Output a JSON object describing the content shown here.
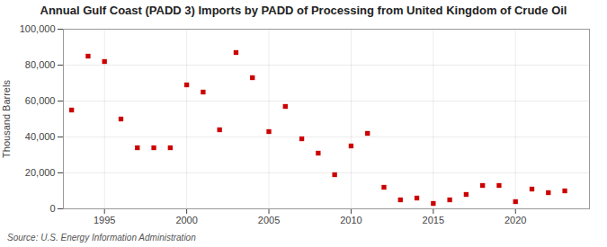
{
  "chart_data": {
    "type": "scatter",
    "title": "Annual Gulf Coast (PADD 3) Imports by PADD of Processing from United Kingdom of Crude Oil",
    "ylabel": "Thousand Barrels",
    "source": "Source: U.S. Energy Information Administration",
    "x": [
      1993,
      1994,
      1995,
      1996,
      1997,
      1998,
      1999,
      2000,
      2001,
      2002,
      2003,
      2004,
      2005,
      2006,
      2007,
      2008,
      2009,
      2010,
      2011,
      2012,
      2013,
      2014,
      2015,
      2016,
      2017,
      2018,
      2019,
      2020,
      2021,
      2022,
      2023
    ],
    "values": [
      55000,
      85000,
      82000,
      50000,
      34000,
      34000,
      34000,
      69000,
      65000,
      44000,
      87000,
      73000,
      43000,
      57000,
      39000,
      31000,
      19000,
      35000,
      42000,
      12000,
      5000,
      6000,
      3000,
      5000,
      8000,
      13000,
      13000,
      4000,
      11000,
      9000,
      10000
    ],
    "color": "#cc0000",
    "marker": "square",
    "xlim": [
      1992.5,
      2024.5
    ],
    "xticks": [
      1995,
      2000,
      2005,
      2010,
      2015,
      2020
    ],
    "ylim": [
      0,
      100000
    ],
    "yticks": [
      0,
      {
        "value": 20000,
        "label": "20,000"
      },
      {
        "value": 40000,
        "label": "40,000"
      },
      {
        "value": 60000,
        "label": "60,000"
      },
      {
        "value": 80000,
        "label": "80,000"
      },
      {
        "value": 100000,
        "label": "100,000"
      }
    ],
    "grid": true
  }
}
